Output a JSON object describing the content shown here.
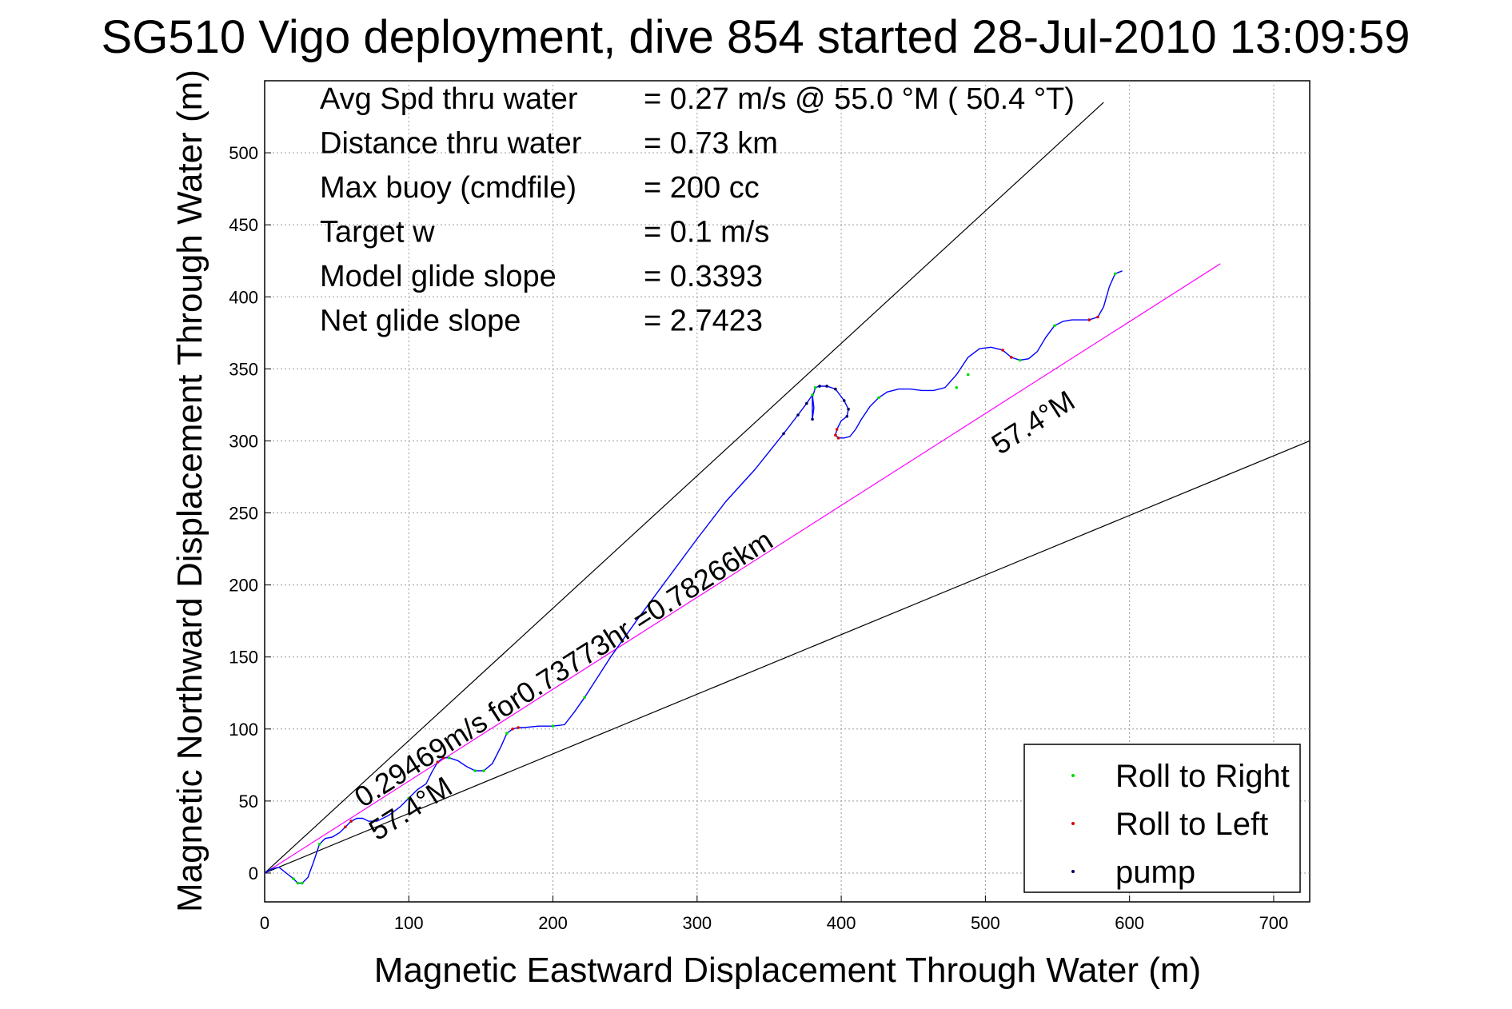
{
  "chart_data": {
    "type": "line",
    "title": "SG510 Vigo deployment, dive 854 started 28-Jul-2010 13:09:59",
    "xlabel": "Magnetic Eastward Displacement Through Water (m)",
    "ylabel": "Magnetic Northward Displacement Through Water (m)",
    "xlim": [
      0,
      725
    ],
    "ylim": [
      -20,
      550
    ],
    "xticks": [
      0,
      100,
      200,
      300,
      400,
      500,
      600,
      700
    ],
    "yticks": [
      0,
      50,
      100,
      150,
      200,
      250,
      300,
      350,
      400,
      450,
      500
    ],
    "grid": true,
    "stats": [
      {
        "label": "Avg Spd thru water",
        "value": "=  0.27 m/s @  55.0 °M ( 50.4 °T)"
      },
      {
        "label": "Distance thru water",
        "value": "=  0.73 km"
      },
      {
        "label": "Max buoy (cmdfile)",
        "value": "= 200 cc"
      },
      {
        "label": "Target w",
        "value": "= 0.1 m/s"
      },
      {
        "label": "Model glide slope",
        "value": "= 0.3393"
      },
      {
        "label": "Net glide slope",
        "value": "= 2.7423"
      }
    ],
    "annotations": [
      {
        "text": "0.29469m/s for0.73773hr =0.78266km",
        "x": 68,
        "y": 45,
        "angle": 57.4
      },
      {
        "text": "57.4°M",
        "x": 78,
        "y": 22,
        "angle": 57.4
      },
      {
        "text": "57.4°M",
        "x": 510,
        "y": 290,
        "angle": 57.4
      }
    ],
    "reference_lines": [
      {
        "name": "upper-bound",
        "x": [
          0,
          582
        ],
        "y": [
          0,
          535
        ],
        "color": "#000000"
      },
      {
        "name": "lower-bound",
        "x": [
          0,
          725
        ],
        "y": [
          0,
          300
        ],
        "color": "#000000"
      },
      {
        "name": "heading-57.4M",
        "x": [
          0,
          663
        ],
        "y": [
          0,
          423
        ],
        "color": "#ff00ff"
      }
    ],
    "track": {
      "color": "#0000ff",
      "x": [
        0,
        5,
        10,
        15,
        20,
        23,
        26,
        30,
        34,
        38,
        42,
        47,
        52,
        56,
        60,
        64,
        68,
        72,
        78,
        86,
        94,
        100,
        106,
        112,
        116,
        120,
        124,
        128,
        134,
        140,
        146,
        152,
        158,
        164,
        168,
        172,
        176,
        180,
        190,
        200,
        208,
        215,
        222,
        240,
        260,
        280,
        300,
        320,
        340,
        360,
        370,
        376,
        380,
        381,
        380,
        380,
        382,
        385,
        390,
        396,
        402,
        405,
        404,
        400,
        397,
        396,
        398,
        402,
        406,
        410,
        414,
        420,
        426,
        432,
        440,
        448,
        456,
        464,
        472,
        480,
        488,
        496,
        504,
        512,
        518,
        524,
        530,
        536,
        542,
        548,
        554,
        560,
        566,
        572,
        578,
        582,
        586,
        590,
        595
      ],
      "y": [
        0,
        3,
        4,
        0,
        -4,
        -7,
        -7,
        -3,
        8,
        20,
        24,
        25,
        28,
        32,
        36,
        38,
        38,
        36,
        36,
        40,
        46,
        52,
        58,
        62,
        70,
        77,
        80,
        80,
        78,
        74,
        71,
        71,
        76,
        88,
        97,
        100,
        101,
        101,
        102,
        102,
        103,
        112,
        122,
        150,
        178,
        205,
        232,
        258,
        280,
        305,
        318,
        326,
        332,
        323,
        315,
        330,
        337,
        338,
        338,
        336,
        328,
        322,
        317,
        314,
        308,
        304,
        302,
        302,
        303,
        308,
        315,
        324,
        330,
        334,
        336,
        336,
        335,
        335,
        337,
        346,
        358,
        364,
        365,
        363,
        358,
        356,
        357,
        362,
        372,
        380,
        383,
        384,
        384,
        384,
        386,
        393,
        407,
        416,
        418
      ]
    },
    "series": [
      {
        "name": "Roll to Right",
        "color": "#00dd00",
        "x": [
          20,
          23,
          26,
          38,
          60,
          100,
          128,
          146,
          152,
          168,
          200,
          222,
          380,
          382,
          402,
          426,
          480,
          488,
          524,
          548,
          590
        ],
        "y": [
          -4,
          -7,
          -7,
          20,
          36,
          52,
          80,
          71,
          71,
          97,
          102,
          122,
          332,
          337,
          328,
          330,
          337,
          346,
          356,
          380,
          416
        ]
      },
      {
        "name": "Roll to Left",
        "color": "#dd0000",
        "x": [
          56,
          60,
          120,
          124,
          172,
          176,
          396,
          397,
          398,
          512,
          518,
          572,
          578
        ],
        "y": [
          32,
          36,
          77,
          80,
          100,
          101,
          304,
          308,
          302,
          363,
          358,
          384,
          386
        ]
      },
      {
        "name": "pump",
        "color": "#000066",
        "x": [
          360,
          370,
          376,
          380,
          385,
          390,
          396,
          402,
          405,
          404
        ],
        "y": [
          305,
          318,
          326,
          315,
          338,
          338,
          336,
          328,
          322,
          317
        ]
      }
    ],
    "legend_position": "bottom-right"
  }
}
